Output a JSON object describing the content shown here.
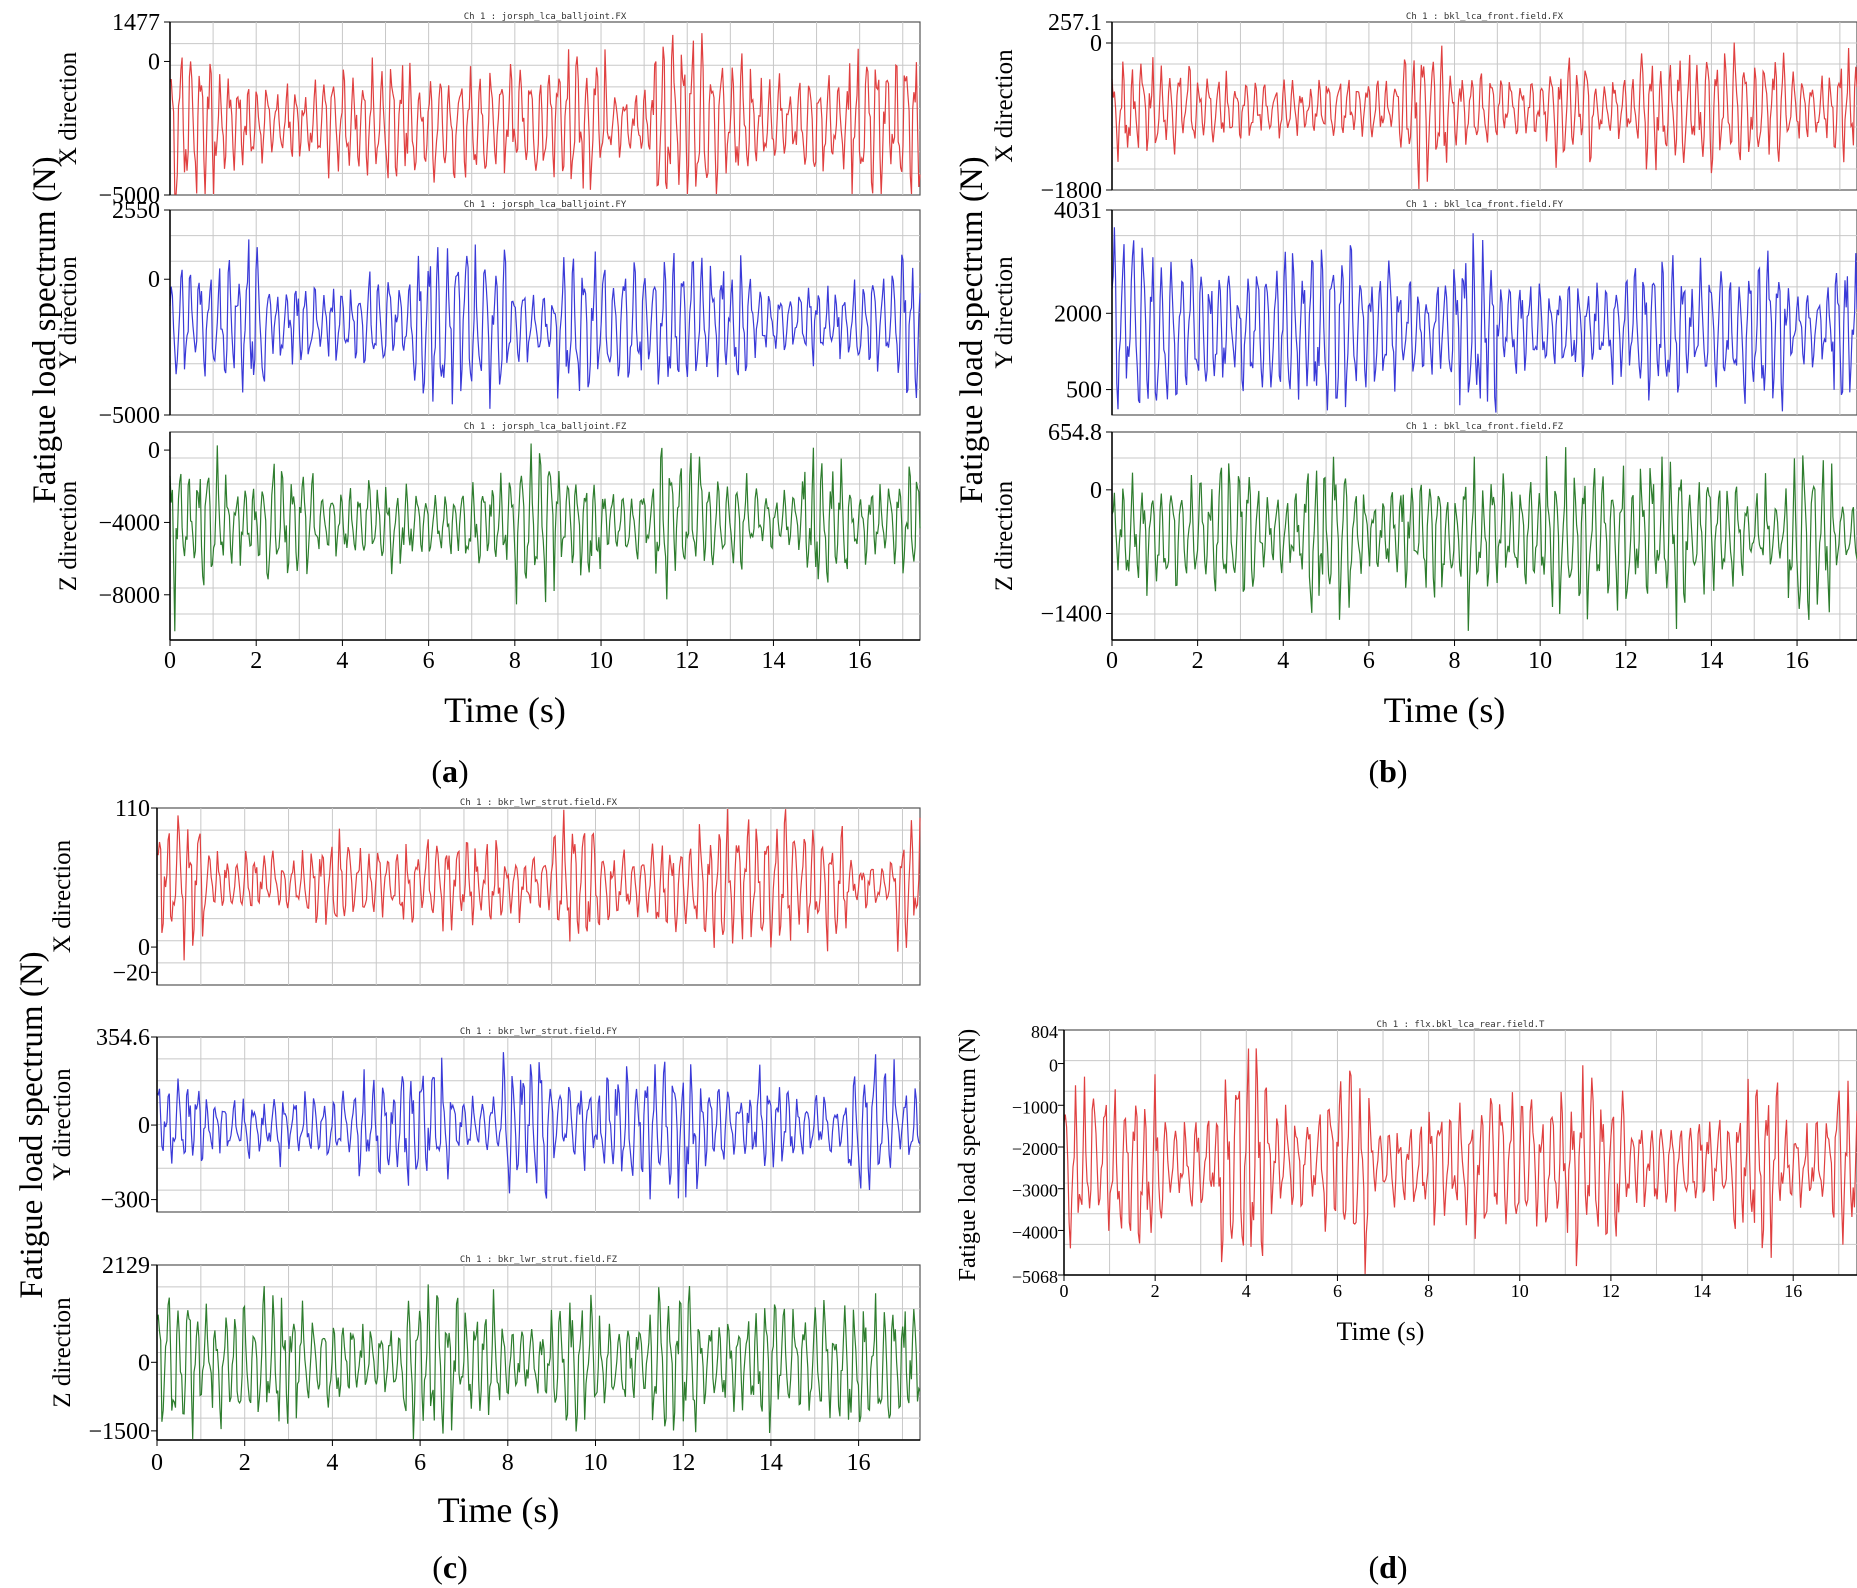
{
  "chart_data": [
    {
      "panel": "a",
      "type": "line",
      "ylabel": "Fatigue load spectrum (N)",
      "xlabel": "Time (s)",
      "xlim": [
        0,
        17.4
      ],
      "xticks": [
        "0",
        "2",
        "4",
        "6",
        "8",
        "10",
        "12",
        "14",
        "16"
      ],
      "subplots": [
        {
          "title": "Ch 1 : jorsph_lca_balljoint.FX",
          "direction": "X direction",
          "color": "#e04040",
          "ylim": [
            -5000,
            1477
          ],
          "ytick_labels": [
            "1477",
            "0",
            "-5000"
          ],
          "ytick_values": [
            1477,
            0,
            -5000
          ],
          "mean": -2300,
          "amplitude": 3300,
          "seed": 11
        },
        {
          "title": "Ch 1 : jorsph_lca_balljoint.FY",
          "direction": "Y direction",
          "color": "#3a3ad8",
          "ylim": [
            -5000,
            2550
          ],
          "ytick_labels": [
            "2550",
            "0",
            "-5000"
          ],
          "ytick_values": [
            2550,
            0,
            -5000
          ],
          "mean": -1600,
          "amplitude": 3300,
          "seed": 12
        },
        {
          "title": "Ch 1 : jorsph_lca_balljoint.FZ",
          "direction": "Z direction",
          "color": "#2e7d2e",
          "ylim": [
            -10500,
            1000
          ],
          "ytick_labels": [
            "0",
            "-4000",
            "-8000"
          ],
          "ytick_values": [
            0,
            -4000,
            -8000
          ],
          "mean": -4000,
          "amplitude": 4200,
          "seed": 13
        }
      ]
    },
    {
      "panel": "b",
      "type": "line",
      "ylabel": "Fatigue load spectrum (N)",
      "xlabel": "Time (s)",
      "xlim": [
        0,
        17.4
      ],
      "xticks": [
        "0",
        "2",
        "4",
        "6",
        "8",
        "10",
        "12",
        "14",
        "16"
      ],
      "subplots": [
        {
          "title": "Ch 1 : bkl_lca_front.field.FX",
          "direction": "X direction",
          "color": "#e04040",
          "ylim": [
            -1800,
            257.1
          ],
          "ytick_labels": [
            "257.1",
            "0",
            "-1800"
          ],
          "ytick_values": [
            257.1,
            0,
            -1800
          ],
          "mean": -800,
          "amplitude": 900,
          "seed": 21
        },
        {
          "title": "Ch 1 : bkl_lca_front.field.FY",
          "direction": "Y direction",
          "color": "#3a3ad8",
          "ylim": [
            0,
            4031
          ],
          "ytick_labels": [
            "4031",
            "2000",
            "500"
          ],
          "ytick_values": [
            4031,
            2000,
            500
          ],
          "mean": 1700,
          "amplitude": 1900,
          "seed": 22
        },
        {
          "title": "Ch 1 : bkl_lca_front.field.FZ",
          "direction": "Z direction",
          "color": "#2e7d2e",
          "ylim": [
            -1700,
            654.8
          ],
          "ytick_labels": [
            "654.8",
            "0",
            "-1400"
          ],
          "ytick_values": [
            654.8,
            0,
            -1400
          ],
          "mean": -500,
          "amplitude": 1000,
          "seed": 23
        }
      ]
    },
    {
      "panel": "c",
      "type": "line",
      "ylabel": "Fatigue load spectrum (N)",
      "xlabel": "Time (s)",
      "xlim": [
        0,
        17.4
      ],
      "xticks": [
        "0",
        "2",
        "4",
        "6",
        "8",
        "10",
        "12",
        "14",
        "16"
      ],
      "subplots": [
        {
          "title": "Ch 1 : bkr_lwr_strut.field.FX",
          "direction": "X direction",
          "color": "#e04040",
          "ylim": [
            -30,
            110
          ],
          "ytick_labels": [
            "110",
            "0",
            "-20"
          ],
          "ytick_values": [
            110,
            0,
            -20
          ],
          "mean": 50,
          "amplitude": 55,
          "seed": 31
        },
        {
          "title": "Ch 1 : bkr_lwr_strut.field.FY",
          "direction": "Y direction",
          "color": "#3a3ad8",
          "ylim": [
            -350,
            354.6
          ],
          "ytick_labels": [
            "354.6",
            "0",
            "-300"
          ],
          "ytick_values": [
            354.6,
            0,
            -300
          ],
          "mean": 0,
          "amplitude": 300,
          "seed": 32
        },
        {
          "title": "Ch 1 : bkr_lwr_strut.field.FZ",
          "direction": "Z direction",
          "color": "#2e7d2e",
          "ylim": [
            -1700,
            2129
          ],
          "ytick_labels": [
            "2129",
            "0",
            "-1500"
          ],
          "ytick_values": [
            2129,
            0,
            -1500
          ],
          "mean": 0,
          "amplitude": 1600,
          "seed": 33
        }
      ]
    },
    {
      "panel": "d",
      "type": "line",
      "ylabel": "Fatigue load spectrum (N)",
      "xlabel": "Time (s)",
      "xlim": [
        0,
        17.4
      ],
      "xticks": [
        "0",
        "2",
        "4",
        "6",
        "8",
        "10",
        "12",
        "14",
        "16"
      ],
      "subplots": [
        {
          "title": "Ch 1 : flx.bkl_lca_rear.field.T",
          "direction": "",
          "color": "#e04040",
          "ylim": [
            -5068,
            804
          ],
          "ytick_labels": [
            "804",
            "0",
            "-1000",
            "-2000",
            "-3000",
            "-4000",
            "-5068"
          ],
          "ytick_values": [
            804,
            0,
            -1000,
            -2000,
            -3000,
            -4000,
            -5068
          ],
          "mean": -2400,
          "amplitude": 2700,
          "seed": 41
        }
      ]
    }
  ],
  "panel_labels": {
    "a": "(a)",
    "b": "(b)",
    "c": "(c)",
    "d": "(d)"
  }
}
